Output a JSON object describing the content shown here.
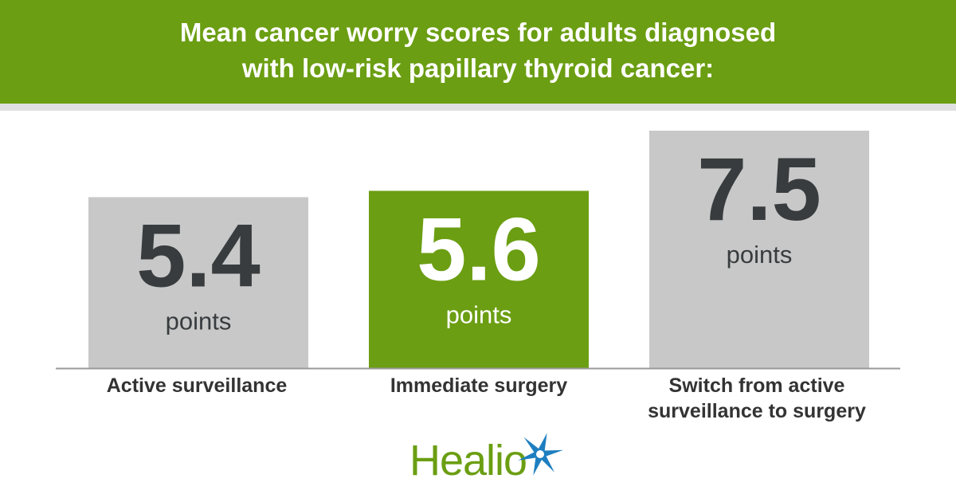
{
  "header": {
    "title": "Mean cancer worry scores for adults diagnosed with low-risk papillary thyroid cancer:"
  },
  "chart_data": {
    "type": "bar",
    "title": "Mean cancer worry scores for adults diagnosed with low-risk papillary thyroid cancer:",
    "categories": [
      "Active surveillance",
      "Immediate surgery",
      "Switch from active surveillance to surgery"
    ],
    "values": [
      5.4,
      5.6,
      7.5
    ],
    "value_labels": [
      "5.4",
      "5.6",
      "7.5"
    ],
    "unit": "points",
    "ylim": [
      0,
      7.5
    ],
    "grid": false,
    "colors": [
      "#c8c8c8",
      "#6b9e12",
      "#c8c8c8"
    ],
    "value_text_colors": [
      "#383c3e",
      "#ffffff",
      "#383c3e"
    ]
  },
  "branding": {
    "logo_text": "Healio",
    "logo_color": "#6b9e12",
    "star_color": "#1e7fc0"
  }
}
